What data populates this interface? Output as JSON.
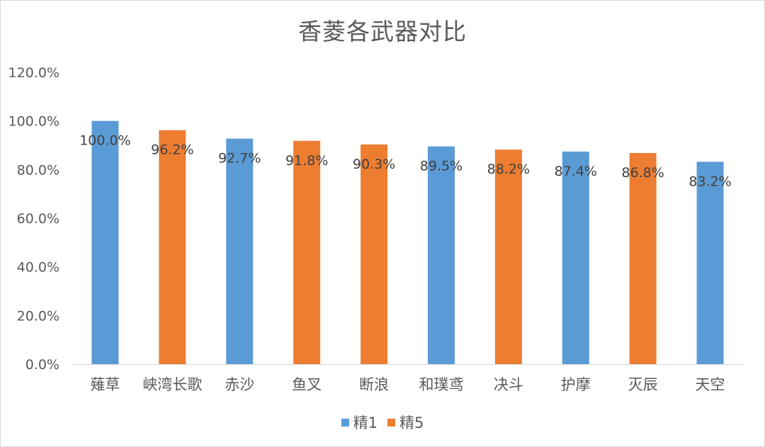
{
  "chart_data": {
    "type": "bar",
    "title": "香菱各武器对比",
    "xlabel": "",
    "ylabel": "",
    "ylim": [
      0,
      120
    ],
    "yticks": [
      "0.0%",
      "20.0%",
      "40.0%",
      "60.0%",
      "80.0%",
      "100.0%",
      "120.0%"
    ],
    "grid": false,
    "legend_position": "bottom",
    "categories": [
      "薙草",
      "峡湾长歌",
      "赤沙",
      "鱼叉",
      "断浪",
      "和璞鸢",
      "决斗",
      "护摩",
      "灭辰",
      "天空"
    ],
    "values": [
      100.0,
      96.2,
      92.7,
      91.8,
      90.3,
      89.5,
      88.2,
      87.4,
      86.8,
      83.2
    ],
    "data_labels": [
      "100.0%",
      "96.2%",
      "92.7%",
      "91.8%",
      "90.3%",
      "89.5%",
      "88.2%",
      "87.4%",
      "86.8%",
      "83.2%"
    ],
    "bar_series": [
      "精1",
      "精5",
      "精1",
      "精5",
      "精5",
      "精1",
      "精5",
      "精1",
      "精5",
      "精1"
    ],
    "series": [
      {
        "name": "精1",
        "color": "#5b9bd5"
      },
      {
        "name": "精5",
        "color": "#ed7d31"
      }
    ]
  }
}
